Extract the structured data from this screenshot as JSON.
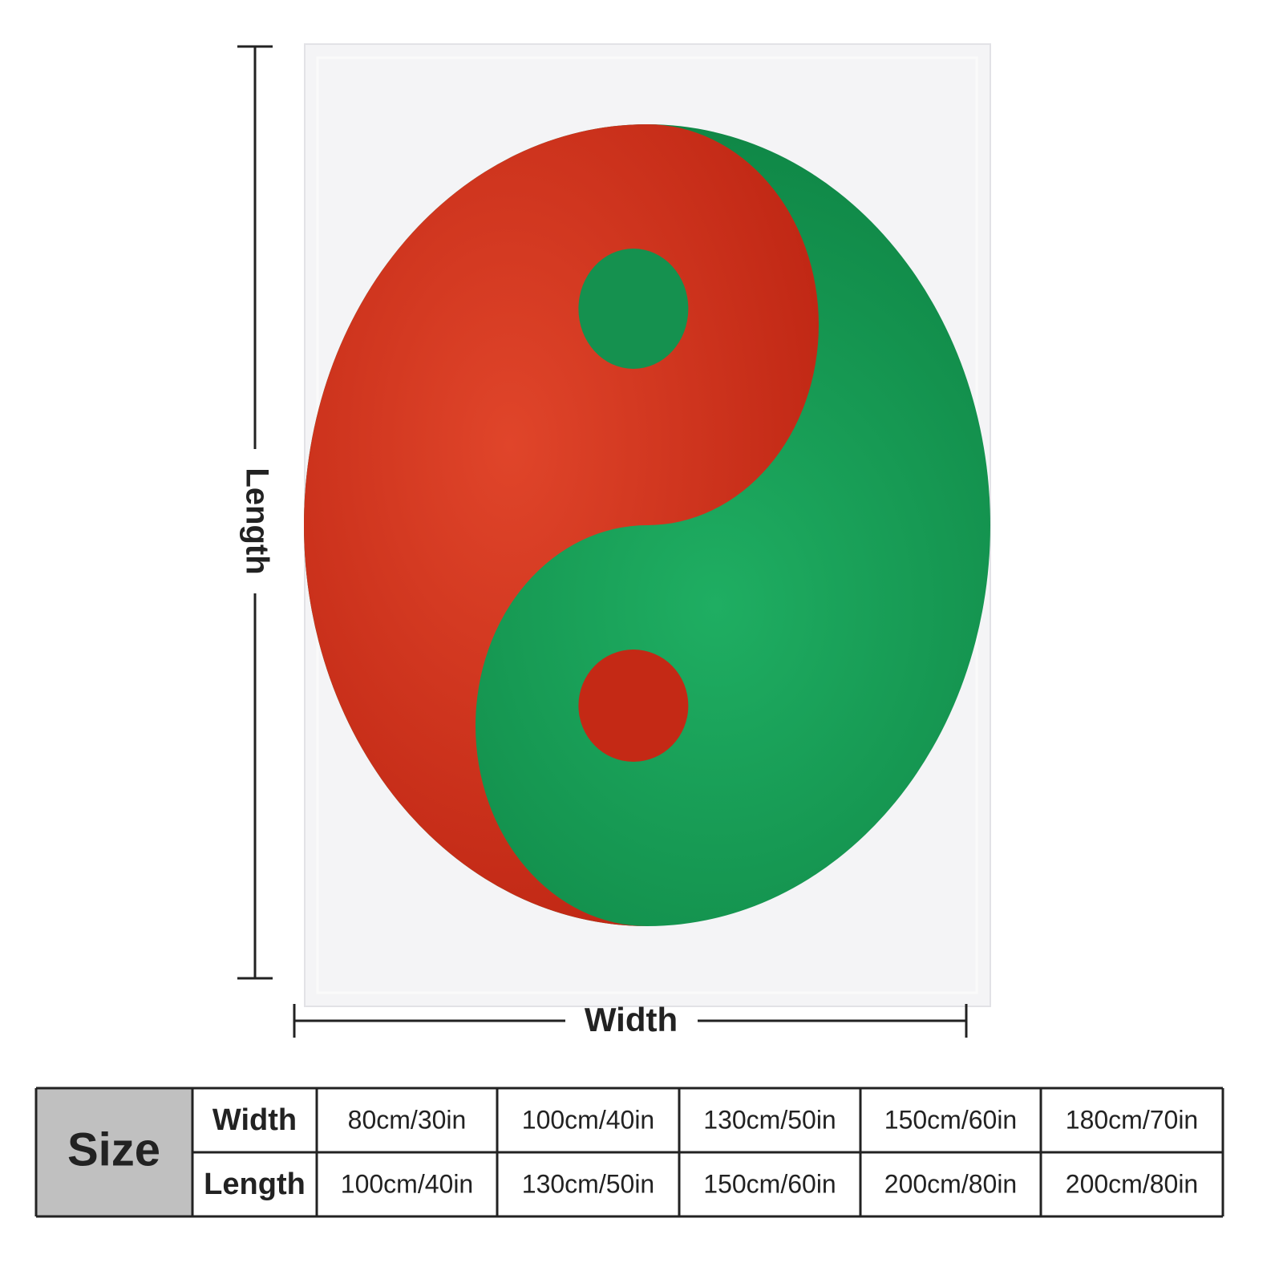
{
  "dimensions": {
    "length": "Length",
    "width": "Width"
  },
  "table": {
    "header": "Size",
    "rows": [
      {
        "label": "Width",
        "values": [
          "80cm/30in",
          "100cm/40in",
          "130cm/50in",
          "150cm/60in",
          "180cm/70in"
        ]
      },
      {
        "label": "Length",
        "values": [
          "100cm/40in",
          "130cm/50in",
          "150cm/60in",
          "200cm/80in",
          "200cm/80in"
        ]
      }
    ]
  }
}
